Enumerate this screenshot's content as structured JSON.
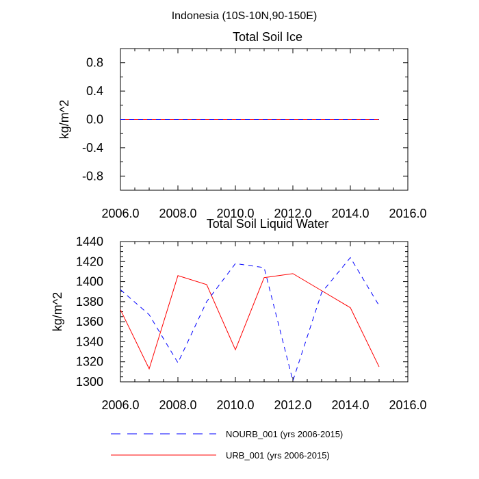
{
  "title": "Indonesia (10S-10N,90-150E)",
  "colors": {
    "nourb": "#0000ff",
    "urb": "#ff0000",
    "axis": "#000000"
  },
  "legend": [
    {
      "name": "NOURB_001 (yrs 2006-2015)",
      "color": "#0000ff",
      "style": "dashed"
    },
    {
      "name": "URB_001 (yrs 2006-2015)",
      "color": "#ff0000",
      "style": "solid"
    }
  ],
  "chart_data": [
    {
      "type": "line",
      "title": "Total Soil Ice",
      "ylabel": "kg/m^2",
      "xlabel": "",
      "xlim": [
        2006,
        2016
      ],
      "ylim": [
        -1.0,
        1.0
      ],
      "xticks": [
        "2006.0",
        "2008.0",
        "2010.0",
        "2012.0",
        "2014.0",
        "2016.0"
      ],
      "yticks": [
        "0.8",
        "0.4",
        "0.0",
        "-0.4",
        "-0.8"
      ],
      "x": [
        2006,
        2007,
        2008,
        2009,
        2010,
        2011,
        2012,
        2013,
        2014,
        2015
      ],
      "series": [
        {
          "name": "NOURB_001 (yrs 2006-2015)",
          "values": [
            0,
            0,
            0,
            0,
            0,
            0,
            0,
            0,
            0,
            0
          ]
        },
        {
          "name": "URB_001 (yrs 2006-2015)",
          "values": [
            0,
            0,
            0,
            0,
            0,
            0,
            0,
            0,
            0,
            0
          ]
        }
      ]
    },
    {
      "type": "line",
      "title": "Total Soil Liquid Water",
      "ylabel": "kg/m^2",
      "xlabel": "",
      "xlim": [
        2006,
        2016
      ],
      "ylim": [
        1300,
        1440
      ],
      "xticks": [
        "2006.0",
        "2008.0",
        "2010.0",
        "2012.0",
        "2014.0",
        "2016.0"
      ],
      "yticks": [
        "1440",
        "1420",
        "1400",
        "1380",
        "1360",
        "1340",
        "1320",
        "1300"
      ],
      "x": [
        2006,
        2007,
        2008,
        2009,
        2010,
        2011,
        2012,
        2013,
        2014,
        2015
      ],
      "series": [
        {
          "name": "NOURB_001 (yrs 2006-2015)",
          "values": [
            1392,
            1367,
            1319,
            1380,
            1418,
            1414,
            1301,
            1389,
            1424,
            1376
          ]
        },
        {
          "name": "URB_001 (yrs 2006-2015)",
          "values": [
            1372,
            1313,
            1406,
            1397,
            1332,
            1404,
            1408,
            1391,
            1374,
            1315
          ]
        }
      ]
    }
  ]
}
